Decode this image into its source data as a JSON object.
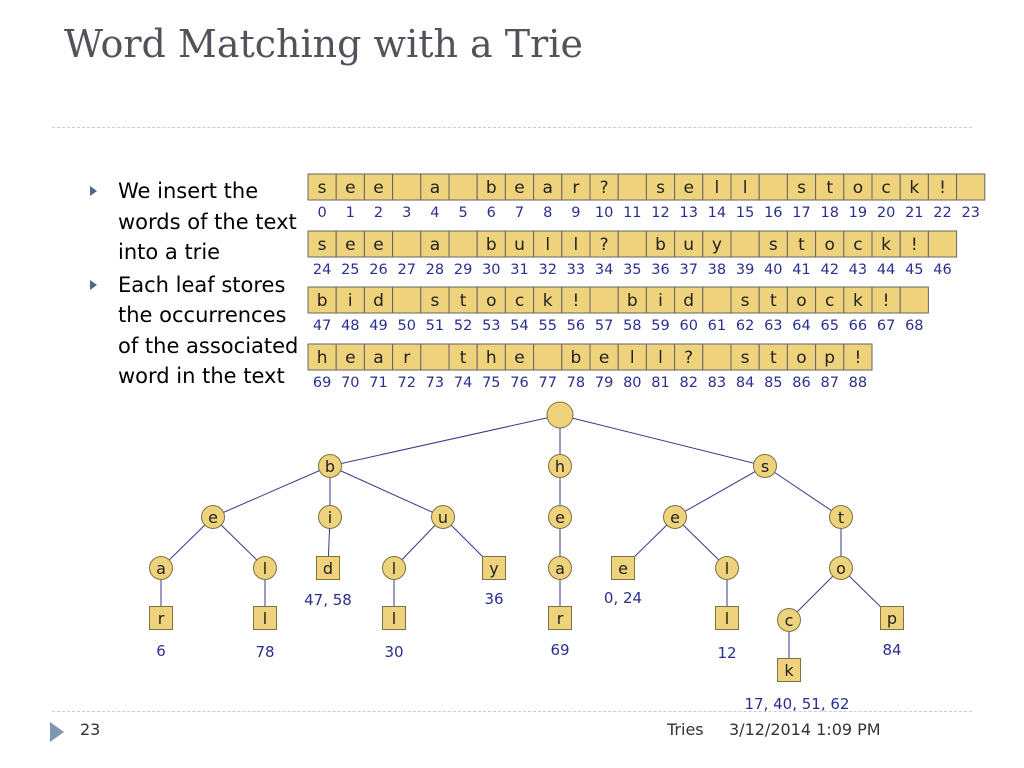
{
  "slide": {
    "title": "Word Matching with a Trie",
    "bullets": [
      "We insert the words of the text into a trie",
      "Each leaf stores the occurrences of the associated word in the text"
    ],
    "footer": {
      "page": "23",
      "section": "Tries",
      "date": "3/12/2014 1:09 PM"
    }
  },
  "text_rows": [
    {
      "cells": [
        "s",
        "e",
        "e",
        "",
        "a",
        "",
        "b",
        "e",
        "a",
        "r",
        "?",
        "",
        "s",
        "e",
        "l",
        "l",
        "",
        "s",
        "t",
        "o",
        "c",
        "k",
        "!",
        ""
      ],
      "indices": [
        "0",
        "1",
        "2",
        "3",
        "4",
        "5",
        "6",
        "7",
        "8",
        "9",
        "10",
        "11",
        "12",
        "13",
        "14",
        "15",
        "16",
        "17",
        "18",
        "19",
        "20",
        "21",
        "22",
        "23"
      ]
    },
    {
      "cells": [
        "s",
        "e",
        "e",
        "",
        "a",
        "",
        "b",
        "u",
        "l",
        "l",
        "?",
        "",
        "b",
        "u",
        "y",
        "",
        "s",
        "t",
        "o",
        "c",
        "k",
        "!",
        ""
      ],
      "indices": [
        "24",
        "25",
        "26",
        "27",
        "28",
        "29",
        "30",
        "31",
        "32",
        "33",
        "34",
        "35",
        "36",
        "37",
        "38",
        "39",
        "40",
        "41",
        "42",
        "43",
        "44",
        "45",
        "46"
      ]
    },
    {
      "cells": [
        "b",
        "i",
        "d",
        "",
        "s",
        "t",
        "o",
        "c",
        "k",
        "!",
        "",
        "b",
        "i",
        "d",
        "",
        "s",
        "t",
        "o",
        "c",
        "k",
        "!",
        ""
      ],
      "indices": [
        "47",
        "48",
        "49",
        "50",
        "51",
        "52",
        "53",
        "54",
        "55",
        "56",
        "57",
        "58",
        "59",
        "60",
        "61",
        "62",
        "63",
        "64",
        "65",
        "66",
        "67",
        "68"
      ]
    },
    {
      "cells": [
        "h",
        "e",
        "a",
        "r",
        "",
        "t",
        "h",
        "e",
        "",
        "b",
        "e",
        "l",
        "l",
        "?",
        "",
        "s",
        "t",
        "o",
        "p",
        "!"
      ],
      "indices": [
        "69",
        "70",
        "71",
        "72",
        "73",
        "74",
        "75",
        "76",
        "77",
        "78",
        "79",
        "80",
        "81",
        "82",
        "83",
        "84",
        "85",
        "86",
        "87",
        "88"
      ]
    }
  ],
  "trie": {
    "nodes": [
      {
        "id": "root",
        "label": "",
        "shape": "circle"
      },
      {
        "id": "b",
        "label": "b",
        "shape": "circle"
      },
      {
        "id": "h",
        "label": "h",
        "shape": "circle"
      },
      {
        "id": "s",
        "label": "s",
        "shape": "circle"
      },
      {
        "id": "be",
        "label": "e",
        "shape": "circle"
      },
      {
        "id": "bi",
        "label": "i",
        "shape": "circle"
      },
      {
        "id": "bu",
        "label": "u",
        "shape": "circle"
      },
      {
        "id": "he",
        "label": "e",
        "shape": "circle"
      },
      {
        "id": "se",
        "label": "e",
        "shape": "circle"
      },
      {
        "id": "st",
        "label": "t",
        "shape": "circle"
      },
      {
        "id": "bea",
        "label": "a",
        "shape": "circle"
      },
      {
        "id": "bel",
        "label": "l",
        "shape": "circle"
      },
      {
        "id": "bid",
        "label": "d",
        "shape": "square",
        "occurrences": "47, 58"
      },
      {
        "id": "bul",
        "label": "l",
        "shape": "circle"
      },
      {
        "id": "buy",
        "label": "y",
        "shape": "square",
        "occurrences": "36"
      },
      {
        "id": "hea",
        "label": "a",
        "shape": "circle"
      },
      {
        "id": "see",
        "label": "e",
        "shape": "square",
        "occurrences": "0, 24"
      },
      {
        "id": "sel",
        "label": "l",
        "shape": "circle"
      },
      {
        "id": "sto",
        "label": "o",
        "shape": "circle"
      },
      {
        "id": "bear",
        "label": "r",
        "shape": "square",
        "occurrences": "6"
      },
      {
        "id": "bell",
        "label": "l",
        "shape": "square",
        "occurrences": "78"
      },
      {
        "id": "bull",
        "label": "l",
        "shape": "square",
        "occurrences": "30"
      },
      {
        "id": "hear",
        "label": "r",
        "shape": "square",
        "occurrences": "69"
      },
      {
        "id": "sell",
        "label": "l",
        "shape": "square",
        "occurrences": "12"
      },
      {
        "id": "stoc",
        "label": "c",
        "shape": "circle"
      },
      {
        "id": "stop",
        "label": "p",
        "shape": "square",
        "occurrences": "84"
      },
      {
        "id": "stock",
        "label": "k",
        "shape": "square",
        "occurrences": "17, 40, 51, 62"
      }
    ],
    "edges": [
      [
        "root",
        "b"
      ],
      [
        "root",
        "h"
      ],
      [
        "root",
        "s"
      ],
      [
        "b",
        "be"
      ],
      [
        "b",
        "bi"
      ],
      [
        "b",
        "bu"
      ],
      [
        "h",
        "he"
      ],
      [
        "s",
        "se"
      ],
      [
        "s",
        "st"
      ],
      [
        "be",
        "bea"
      ],
      [
        "be",
        "bel"
      ],
      [
        "bi",
        "bid"
      ],
      [
        "bu",
        "bul"
      ],
      [
        "bu",
        "buy"
      ],
      [
        "he",
        "hea"
      ],
      [
        "se",
        "see"
      ],
      [
        "se",
        "sel"
      ],
      [
        "st",
        "sto"
      ],
      [
        "bea",
        "bear"
      ],
      [
        "bel",
        "bell"
      ],
      [
        "bul",
        "bull"
      ],
      [
        "hea",
        "hear"
      ],
      [
        "sel",
        "sell"
      ],
      [
        "sto",
        "stoc"
      ],
      [
        "sto",
        "stop"
      ],
      [
        "stoc",
        "stock"
      ]
    ]
  },
  "colors": {
    "cell_fill": "#efd27c",
    "cell_stroke": "#666666",
    "node_stroke": "#7a7440",
    "edge": "#333a8a",
    "index_text": "#2a2f8f",
    "title": "#50535a"
  }
}
